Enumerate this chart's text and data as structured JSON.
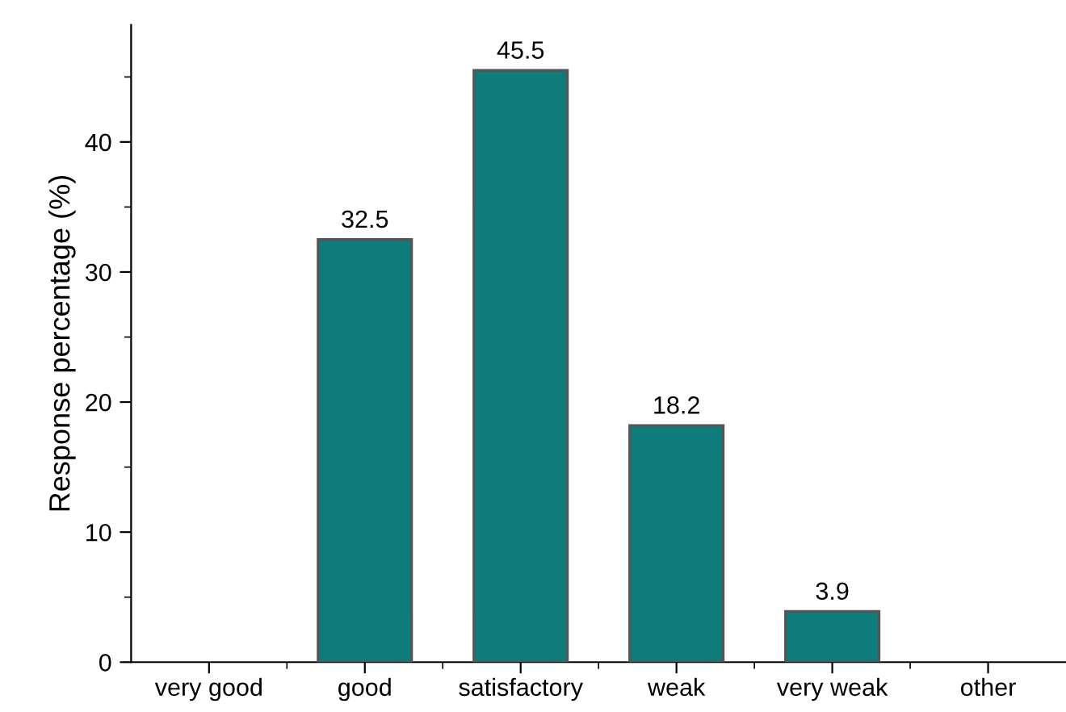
{
  "chart_data": {
    "type": "bar",
    "ylabel": "Response percentage (%)",
    "categories": [
      "very good",
      "good",
      "satisfactory",
      "weak",
      "very weak",
      "other"
    ],
    "values": [
      0,
      32.5,
      45.5,
      18.2,
      3.9,
      0
    ],
    "value_labels": [
      null,
      "32.5",
      "45.5",
      "18.2",
      "3.9",
      null
    ],
    "color": "#0e7c7b",
    "ylim": [
      0,
      49
    ],
    "yticks": [
      0,
      10,
      20,
      30,
      40
    ],
    "grid": false,
    "legend": false
  }
}
